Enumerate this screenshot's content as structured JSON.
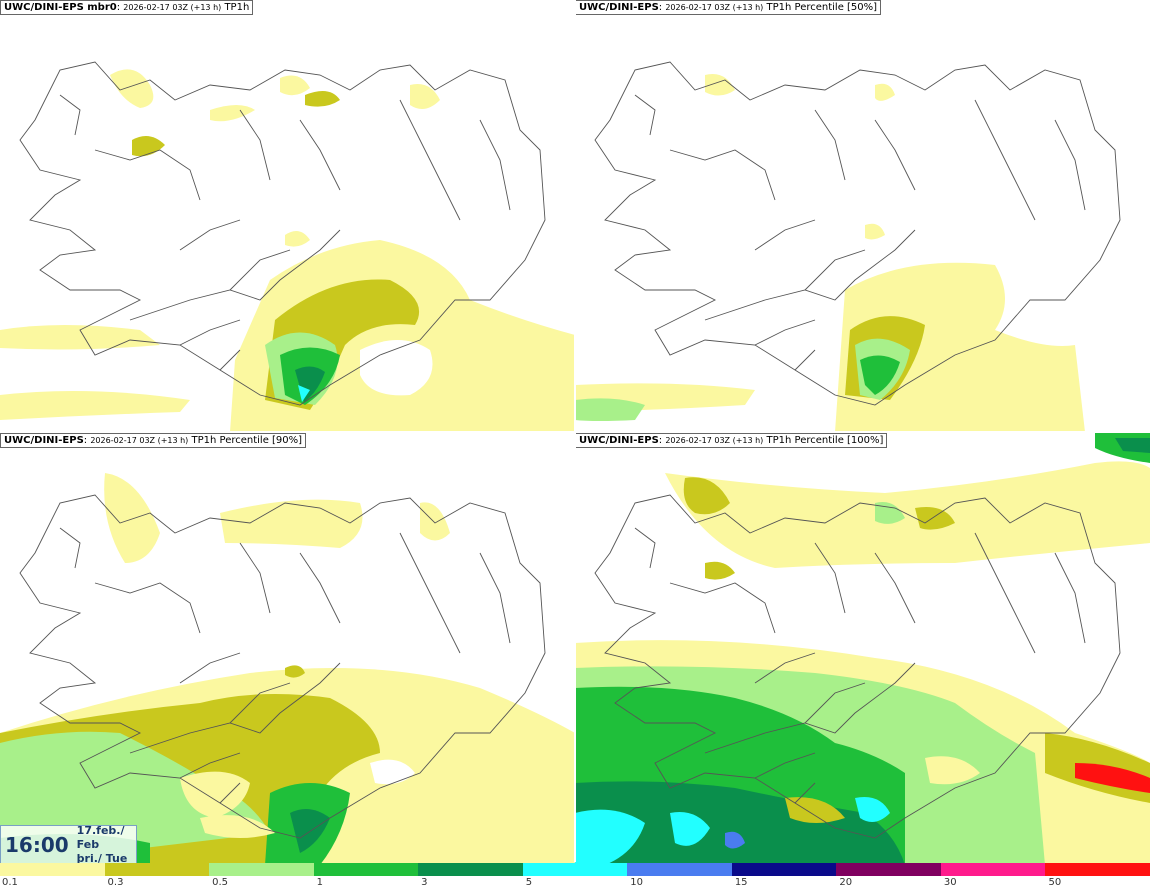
{
  "panels": [
    {
      "model": "UWC/DINI-EPS mbr0",
      "meta": "2026-02-17 03Z (+13 h)",
      "field": "TP1h"
    },
    {
      "model": "UWC/DINI-EPS",
      "meta": "2026-02-17 03Z (+13 h)",
      "field": "TP1h Percentile [50%]"
    },
    {
      "model": "UWC/DINI-EPS",
      "meta": "2026-02-17 03Z (+13 h)",
      "field": "TP1h Percentile [90%]"
    },
    {
      "model": "UWC/DINI-EPS",
      "meta": "2026-02-17 03Z (+13 h)",
      "field": "TP1h Percentile [100%]"
    }
  ],
  "valid_time": {
    "time": "16:00",
    "date_line": "17.feb./ Feb",
    "day_line": "þri./ Tue"
  },
  "legend": {
    "labels": [
      "0.1",
      "0.3",
      "0.5",
      "1",
      "3",
      "5",
      "10",
      "15",
      "20",
      "30",
      "50"
    ],
    "colors": [
      "#fbf8a0",
      "#c9c81e",
      "#a8f08a",
      "#1fbf3a",
      "#0a8f4c",
      "#22ffff",
      "#4a7cf0",
      "#0a0a8a",
      "#800060",
      "#ff1a8c",
      "#ff1111"
    ]
  },
  "colors": {
    "light_yellow": "#fbf8a0",
    "olive": "#c9c81e",
    "light_green": "#a8f08a",
    "green": "#1fbf3a",
    "dark_green": "#0a8f4c",
    "cyan": "#22ffff",
    "blue": "#4a7cf0",
    "outline": "#555555"
  }
}
